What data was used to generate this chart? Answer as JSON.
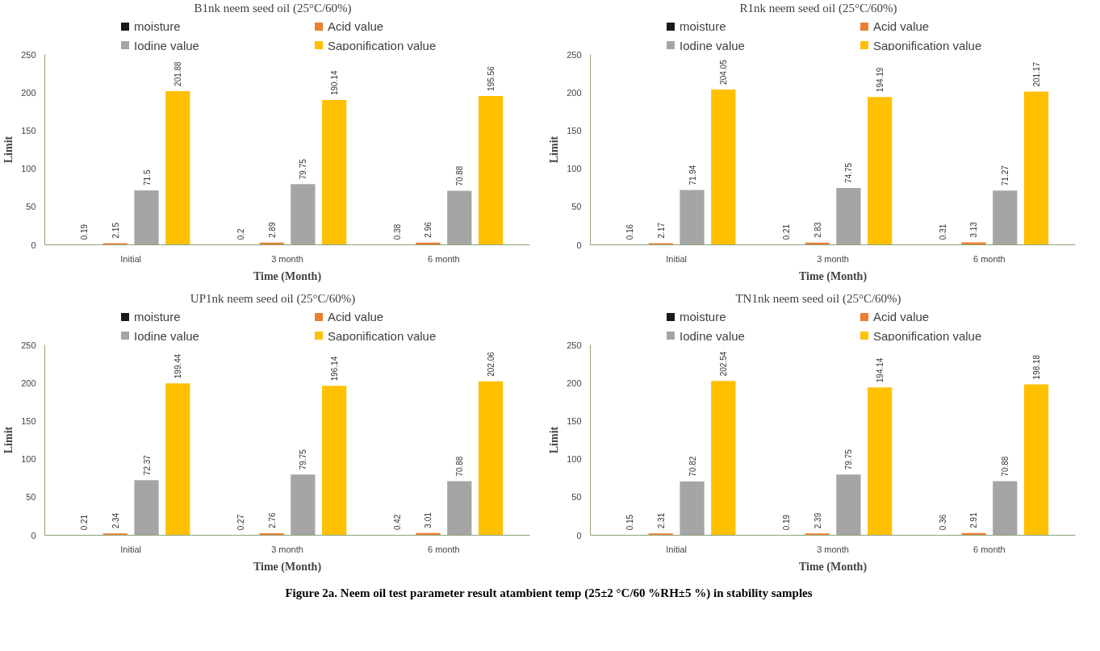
{
  "chart_data": [
    {
      "type": "bar",
      "title": "B1nk neem seed oil (25°C/60%)",
      "xlabel": "Time (Month)",
      "ylabel": "Limit",
      "categories": [
        "Initial",
        "3 month",
        "6 month"
      ],
      "ylim": [
        0,
        250
      ],
      "yticks": [
        0,
        50,
        100,
        150,
        200,
        250
      ],
      "grid": false,
      "legend": "top",
      "data_labels": true,
      "series": [
        {
          "name": "moisture",
          "color": "#1a1a1a",
          "values": [
            0.19,
            0.2,
            0.38
          ]
        },
        {
          "name": "Acid value",
          "color": "#ed7d31",
          "values": [
            2.15,
            2.89,
            2.96
          ]
        },
        {
          "name": "Iodine value",
          "color": "#a5a5a5",
          "values": [
            71.5,
            79.75,
            70.88
          ]
        },
        {
          "name": "Saponification value",
          "color": "#ffc000",
          "values": [
            201.88,
            190.14,
            195.56
          ]
        }
      ]
    },
    {
      "type": "bar",
      "title": "R1nk neem seed oil (25°C/60%)",
      "xlabel": "Time (Month)",
      "ylabel": "Limit",
      "categories": [
        "Initial",
        "3 month",
        "6 month"
      ],
      "ylim": [
        0,
        250
      ],
      "yticks": [
        0,
        50,
        100,
        150,
        200,
        250
      ],
      "grid": false,
      "legend": "top",
      "data_labels": true,
      "series": [
        {
          "name": "moisture",
          "color": "#1a1a1a",
          "values": [
            0.16,
            0.21,
            0.31
          ]
        },
        {
          "name": "Acid value",
          "color": "#ed7d31",
          "values": [
            2.17,
            2.83,
            3.13
          ]
        },
        {
          "name": "Iodine value",
          "color": "#a5a5a5",
          "values": [
            71.94,
            74.75,
            71.27
          ]
        },
        {
          "name": "Saponification value",
          "color": "#ffc000",
          "values": [
            204.05,
            194.19,
            201.17
          ]
        }
      ]
    },
    {
      "type": "bar",
      "title": "UP1nk neem seed oil (25°C/60%)",
      "xlabel": "Time (Month)",
      "ylabel": "Limit",
      "categories": [
        "Initial",
        "3 month",
        "6 month"
      ],
      "ylim": [
        0,
        250
      ],
      "yticks": [
        0,
        50,
        100,
        150,
        200,
        250
      ],
      "grid": false,
      "legend": "top",
      "data_labels": true,
      "series": [
        {
          "name": "moisture",
          "color": "#1a1a1a",
          "values": [
            0.21,
            0.27,
            0.42
          ]
        },
        {
          "name": "Acid value",
          "color": "#ed7d31",
          "values": [
            2.34,
            2.76,
            3.01
          ]
        },
        {
          "name": "Iodine value",
          "color": "#a5a5a5",
          "values": [
            72.37,
            79.75,
            70.88
          ]
        },
        {
          "name": "Saponification value",
          "color": "#ffc000",
          "values": [
            199.44,
            196.14,
            202.06
          ]
        }
      ]
    },
    {
      "type": "bar",
      "title": "TN1nk neem seed oil (25°C/60%)",
      "xlabel": "Time (Month)",
      "ylabel": "Limit",
      "categories": [
        "Initial",
        "3 month",
        "6 month"
      ],
      "ylim": [
        0,
        250
      ],
      "yticks": [
        0,
        50,
        100,
        150,
        200,
        250
      ],
      "grid": false,
      "legend": "top",
      "data_labels": true,
      "annotations": [
        "Figure 2a. Neem oil test parameter result atambient temp (25±2 °C/60 %RH±5 %) in stability samples"
      ],
      "series": [
        {
          "name": "moisture",
          "color": "#1a1a1a",
          "values": [
            0.15,
            0.19,
            0.36
          ]
        },
        {
          "name": "Acid value",
          "color": "#ed7d31",
          "values": [
            2.31,
            2.39,
            2.91
          ]
        },
        {
          "name": "Iodine value",
          "color": "#a5a5a5",
          "values": [
            70.82,
            79.75,
            70.88
          ]
        },
        {
          "name": "Saponification value",
          "color": "#ffc000",
          "values": [
            202.54,
            194.14,
            198.18
          ]
        }
      ]
    }
  ]
}
